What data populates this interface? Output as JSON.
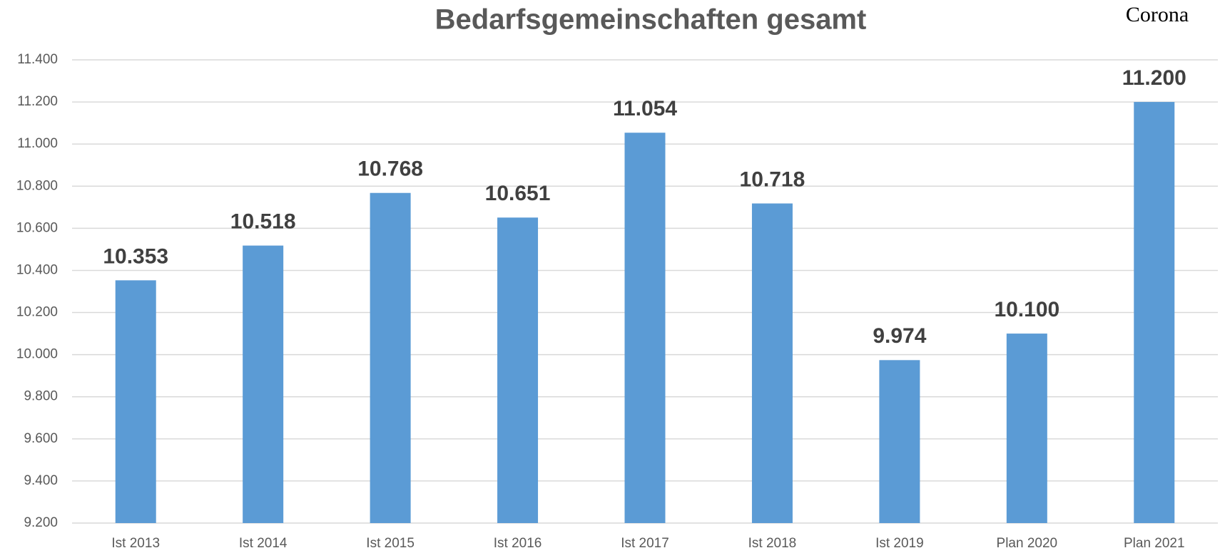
{
  "chart_data": {
    "type": "bar",
    "title": "Bedarfsgemeinschaften gesamt",
    "annotation": "Corona",
    "categories": [
      "Ist 2013",
      "Ist 2014",
      "Ist 2015",
      "Ist 2016",
      "Ist 2017",
      "Ist 2018",
      "Ist 2019",
      "Plan 2020",
      "Plan 2021"
    ],
    "values": [
      10353,
      10518,
      10768,
      10651,
      11054,
      10718,
      9974,
      10100,
      11200
    ],
    "value_labels": [
      "10.353",
      "10.518",
      "10.768",
      "10.651",
      "11.054",
      "10.718",
      "9.974",
      "10.100",
      "11.200"
    ],
    "color": "#5b9bd5",
    "ylim": [
      9200,
      11400
    ],
    "yticks": [
      {
        "value": 9200,
        "label": "9.200"
      },
      {
        "value": 9400,
        "label": "9.400"
      },
      {
        "value": 9600,
        "label": "9.600"
      },
      {
        "value": 9800,
        "label": "9.800"
      },
      {
        "value": 10000,
        "label": "10.000"
      },
      {
        "value": 10200,
        "label": "10.200"
      },
      {
        "value": 10400,
        "label": "10.400"
      },
      {
        "value": 10600,
        "label": "10.600"
      },
      {
        "value": 10800,
        "label": "10.800"
      },
      {
        "value": 11000,
        "label": "11.000"
      },
      {
        "value": 11200,
        "label": "11.200"
      },
      {
        "value": 11400,
        "label": "11.400"
      }
    ],
    "grid": true
  }
}
